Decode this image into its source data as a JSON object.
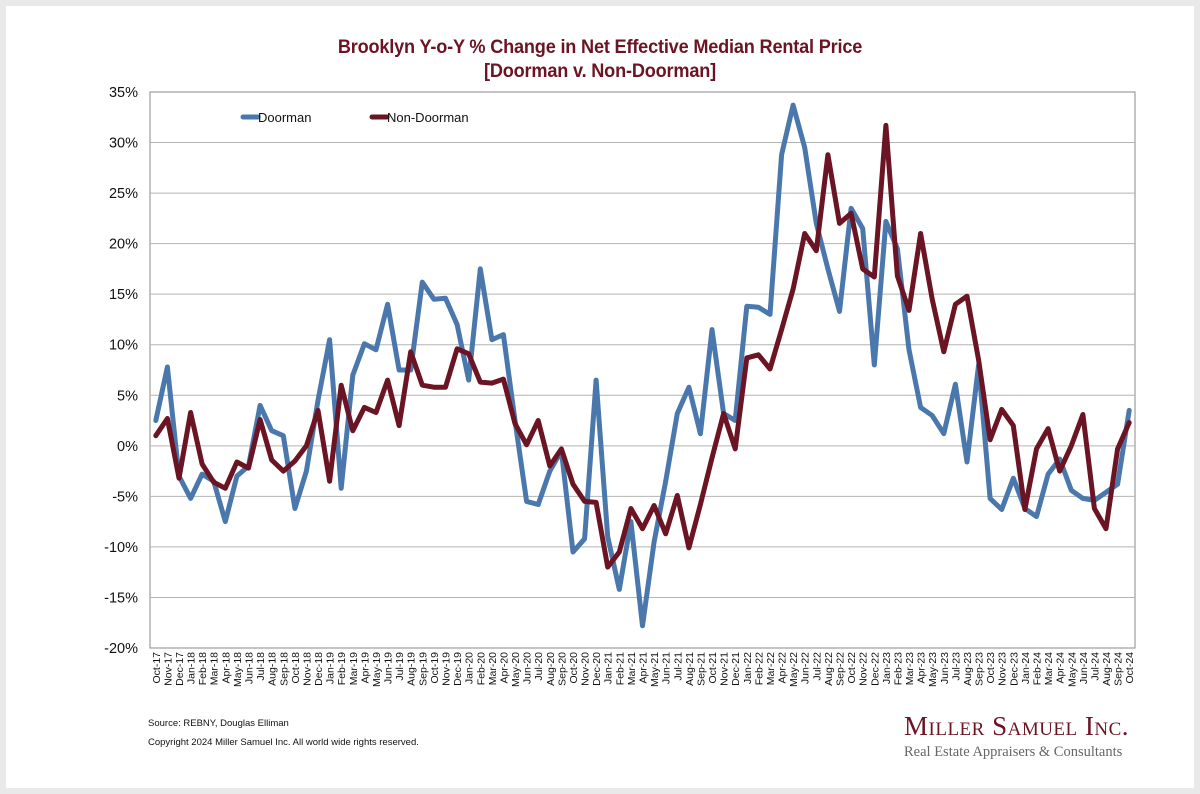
{
  "chart_data": {
    "type": "line",
    "title": "Brooklyn Y-o-Y % Change in Net Effective Median Rental Price",
    "subtitle": "[Doorman v. Non-Doorman]",
    "xlabel": "",
    "ylabel": "",
    "ylim": [
      -20,
      35
    ],
    "yticks": [
      35,
      30,
      25,
      20,
      15,
      10,
      5,
      0,
      -5,
      -10,
      -15,
      -20
    ],
    "ytick_labels": [
      "35%",
      "30%",
      "25%",
      "20%",
      "15%",
      "10%",
      "5%",
      "0%",
      "-5%",
      "-10%",
      "-15%",
      "-20%"
    ],
    "grid": true,
    "legend_position": "top-left",
    "x": [
      "Oct-17",
      "Nov-17",
      "Dec-17",
      "Jan-18",
      "Feb-18",
      "Mar-18",
      "Apr-18",
      "May-18",
      "Jun-18",
      "Jul-18",
      "Aug-18",
      "Sep-18",
      "Oct-18",
      "Nov-18",
      "Dec-18",
      "Jan-19",
      "Feb-19",
      "Mar-19",
      "Apr-19",
      "May-19",
      "Jun-19",
      "Jul-19",
      "Aug-19",
      "Sep-19",
      "Oct-19",
      "Nov-19",
      "Dec-19",
      "Jan-20",
      "Feb-20",
      "Mar-20",
      "Apr-20",
      "May-20",
      "Jun-20",
      "Jul-20",
      "Aug-20",
      "Sep-20",
      "Oct-20",
      "Nov-20",
      "Dec-20",
      "Jan-21",
      "Feb-21",
      "Mar-21",
      "Apr-21",
      "May-21",
      "Jun-21",
      "Jul-21",
      "Aug-21",
      "Sep-21",
      "Oct-21",
      "Nov-21",
      "Dec-21",
      "Jan-22",
      "Feb-22",
      "Mar-22",
      "Apr-22",
      "May-22",
      "Jun-22",
      "Jul-22",
      "Aug-22",
      "Sep-22",
      "Oct-22",
      "Nov-22",
      "Dec-22",
      "Jan-23",
      "Feb-23",
      "Mar-23",
      "Apr-23",
      "May-23",
      "Jun-23",
      "Jul-23",
      "Aug-23",
      "Sep-23",
      "Oct-23",
      "Nov-23",
      "Dec-23",
      "Jan-24",
      "Feb-24",
      "Mar-24",
      "Apr-24",
      "May-24",
      "Jun-24",
      "Jul-24",
      "Aug-24",
      "Sep-24",
      "Oct-24"
    ],
    "series": [
      {
        "name": "Doorman",
        "color": "#4a78ad",
        "values": [
          2.5,
          7.8,
          -3,
          -5.2,
          -2.8,
          -3.5,
          -7.5,
          -3,
          -2,
          4,
          1.5,
          1,
          -6.2,
          -2.5,
          4.5,
          10.5,
          -4.2,
          7,
          10.1,
          9.5,
          14,
          7.5,
          7.5,
          16.2,
          14.5,
          14.6,
          12,
          6.5,
          17.5,
          10.5,
          11,
          2.5,
          -5.5,
          -5.8,
          -2.5,
          -0.5,
          -10.5,
          -9.2,
          6.5,
          -9,
          -14.2,
          -7.5,
          -17.8,
          -9.5,
          -3.5,
          3.2,
          5.8,
          1.2,
          11.5,
          3.2,
          2.5,
          13.8,
          13.7,
          13,
          28.8,
          33.7,
          29.5,
          22,
          17.5,
          13.3,
          23.5,
          21.5,
          8,
          22.2,
          19.5,
          9.5,
          3.8,
          3,
          1.2,
          6.1,
          -1.6,
          8,
          -5.2,
          -6.3,
          -3.2,
          -6.2,
          -7,
          -2.8,
          -1.3,
          -4.4,
          -5.2,
          -5.4,
          -4.6,
          -3.8,
          3.5
        ]
      },
      {
        "name": "Non-Doorman",
        "color": "#6b1423",
        "values": [
          1,
          2.7,
          -3.2,
          3.3,
          -1.8,
          -3.6,
          -4.2,
          -1.6,
          -2.2,
          2.6,
          -1.4,
          -2.5,
          -1.5,
          0,
          3.5,
          -3.5,
          6,
          1.5,
          3.8,
          3.3,
          6.5,
          2,
          9.3,
          6,
          5.8,
          5.8,
          9.6,
          9.1,
          6.3,
          6.2,
          6.6,
          2.2,
          0.1,
          2.5,
          -2,
          -0.3,
          -3.8,
          -5.5,
          -5.6,
          -12,
          -10.5,
          -6.2,
          -8.2,
          -5.9,
          -8.7,
          -4.9,
          -10.1,
          -5.8,
          -1.2,
          3.2,
          -0.3,
          8.7,
          9,
          7.6,
          11.5,
          15.5,
          21,
          19.3,
          28.8,
          22,
          23,
          17.5,
          16.7,
          31.7,
          16.8,
          13.4,
          21,
          14.5,
          9.3,
          14,
          14.8,
          8.5,
          0.6,
          3.6,
          2,
          -6.3,
          -0.3,
          1.7,
          -2.5,
          0,
          3.1,
          -6.2,
          -8.2,
          -0.3,
          2.3
        ]
      }
    ]
  },
  "footer": {
    "source": "Source: REBNY, Douglas Elliman",
    "copyright": "Copyright 2024 Miller Samuel Inc.  All world wide rights reserved."
  },
  "logo": {
    "name": "Miller Samuel Inc.",
    "tagline": "Real Estate Appraisers & Consultants"
  }
}
